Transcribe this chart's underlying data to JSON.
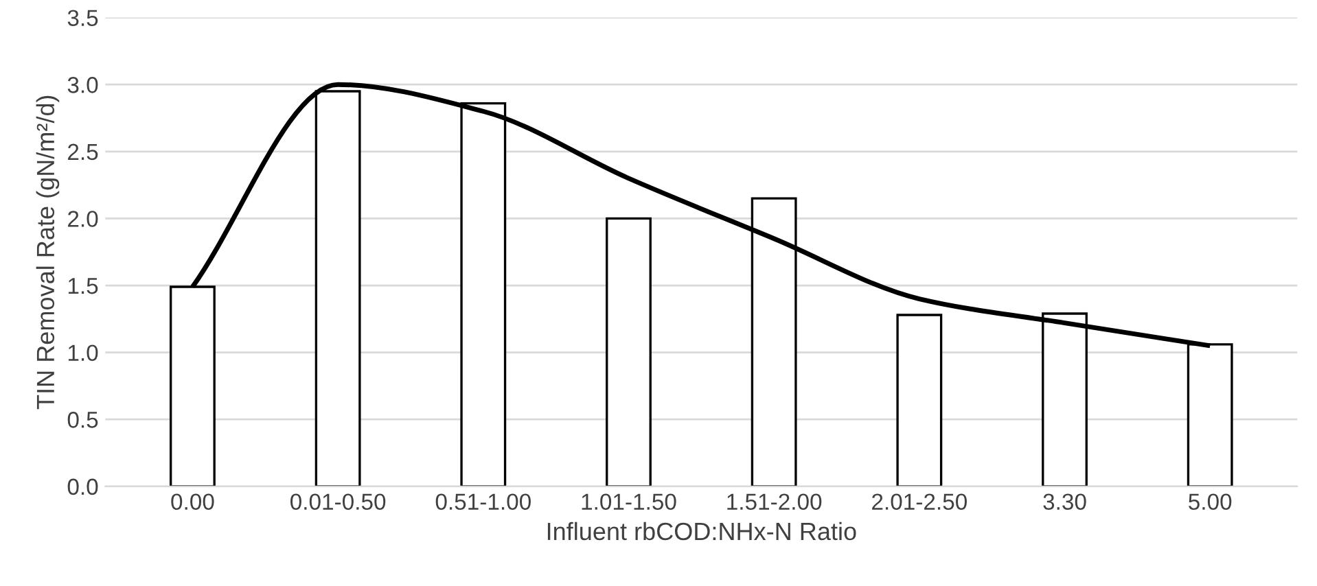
{
  "chart_data": {
    "type": "bar",
    "xlabel": "Influent rbCOD:NHx-N Ratio",
    "ylabel": "TIN Removal Rate (gN/m²/d)",
    "categories": [
      "0.00",
      "0.01-0.50",
      "0.51-1.00",
      "1.01-1.50",
      "1.51-2.00",
      "2.01-2.50",
      "3.30",
      "5.00"
    ],
    "ylim": [
      0,
      3.5
    ],
    "yticks": [
      {
        "value": 0,
        "label": "0.0"
      },
      {
        "value": 0.5,
        "label": "0.5"
      },
      {
        "value": 1,
        "label": "1.0"
      },
      {
        "value": 1.5,
        "label": "1.5"
      },
      {
        "value": 2,
        "label": "2.0"
      },
      {
        "value": 2.5,
        "label": "2.5"
      },
      {
        "value": 3,
        "label": "3.0"
      },
      {
        "value": 3.5,
        "label": "3.5"
      }
    ],
    "grid": "y",
    "legend": false,
    "series": [
      {
        "color": "#ffffff",
        "values": [
          1.49,
          2.95,
          2.86,
          2.0,
          2.15,
          1.28,
          1.29,
          1.06
        ]
      },
      {
        "type": "line",
        "color": "#000000",
        "values": [
          1.49,
          3.0,
          2.8,
          2.3,
          1.85,
          1.4,
          1.22,
          1.05
        ]
      }
    ]
  }
}
